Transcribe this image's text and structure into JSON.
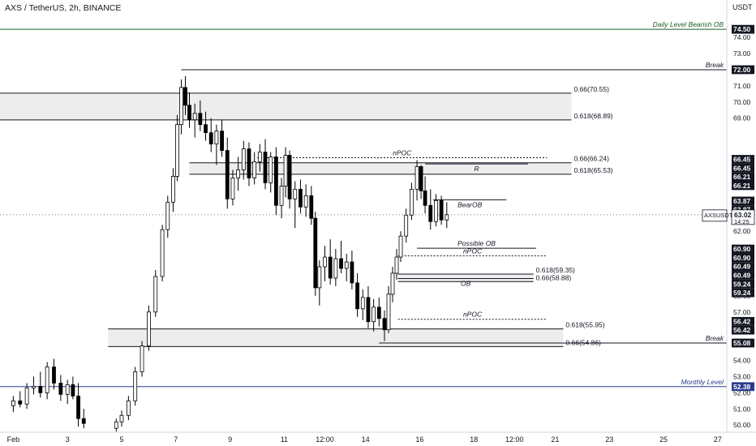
{
  "header": {
    "title": "AXS / TetherUS, 2h, BINANCE",
    "currency": "USDT"
  },
  "colors": {
    "up": "#ffffff",
    "down": "#000000",
    "line": "#131722",
    "zone": "#e9e9e9",
    "axis_text": "#131722",
    "monthly": "#2b3a8f",
    "daily": "#1b5e20"
  },
  "chart_data": {
    "type": "candlestick",
    "title": "AXS / TetherUS, 2h, BINANCE",
    "y_unit": "USDT",
    "ylim": [
      49.6,
      76.0
    ],
    "x_range": [
      "Jan 31 06:00",
      "Feb 28 00:00"
    ],
    "y_ticks": [
      "50.00",
      "51.00",
      "52.00",
      "53.00",
      "54.00",
      "57.00",
      "58.00",
      "62.00",
      "65.00",
      "69.00",
      "70.00",
      "71.00",
      "73.00",
      "74.00"
    ],
    "x_ticks": [
      {
        "label": "Feb",
        "day": 1
      },
      {
        "label": "3",
        "day": 3
      },
      {
        "label": "5",
        "day": 5
      },
      {
        "label": "7",
        "day": 7
      },
      {
        "label": "9",
        "day": 9
      },
      {
        "label": "11",
        "day": 11
      },
      {
        "label": "12:00",
        "day": 12.5
      },
      {
        "label": "14",
        "day": 14
      },
      {
        "label": "16",
        "day": 16
      },
      {
        "label": "18",
        "day": 18
      },
      {
        "label": "12:00",
        "day": 19.5
      },
      {
        "label": "21",
        "day": 21
      },
      {
        "label": "23",
        "day": 23
      },
      {
        "label": "25",
        "day": 25
      },
      {
        "label": "27",
        "day": 27
      }
    ],
    "price_badges": [
      {
        "label": "74.50",
        "price": 74.5
      },
      {
        "label": "72.00",
        "price": 72.0
      },
      {
        "label": "66.45",
        "price": 66.45
      },
      {
        "label": "66.45",
        "price": 66.45
      },
      {
        "label": "66.21",
        "price": 66.21
      },
      {
        "label": "66.21",
        "price": 66.21
      },
      {
        "label": "63.87",
        "price": 63.87
      },
      {
        "label": "63.87",
        "price": 63.87
      },
      {
        "label": "60.90",
        "price": 60.9
      },
      {
        "label": "60.90",
        "price": 60.9
      },
      {
        "label": "60.49",
        "price": 60.49
      },
      {
        "label": "60.49",
        "price": 60.49
      },
      {
        "label": "59.24",
        "price": 59.24
      },
      {
        "label": "59.24",
        "price": 59.24
      },
      {
        "label": "56.42",
        "price": 56.42
      },
      {
        "label": "56.42",
        "price": 56.42
      },
      {
        "label": "55.08",
        "price": 55.08
      },
      {
        "label": "52.38",
        "price": 52.38
      }
    ],
    "current_price": {
      "symbol": "AXSUSDT",
      "price": "63.02",
      "timer": "14:25",
      "value": 63.02
    },
    "levels": [
      {
        "label": "Daily Level Bearish OB",
        "price": 74.5,
        "start_day": 0,
        "style": "solid",
        "color": "daily"
      },
      {
        "label": "Break",
        "price": 72.0,
        "start_day": 7.2,
        "style": "solid",
        "color": "line"
      },
      {
        "label": "0.66(70.55)",
        "price": 70.55,
        "start_day": 0,
        "end_day": 21.6,
        "style": "solid",
        "color": "line"
      },
      {
        "label": "0.618(68.89)",
        "price": 68.89,
        "start_day": 0,
        "end_day": 21.6,
        "style": "solid",
        "color": "line"
      },
      {
        "label": "nPOC",
        "price": 66.55,
        "start_day": 10.0,
        "end_day": 20.7,
        "style": "dotted",
        "color": "line"
      },
      {
        "label": "0.66(66.24)",
        "price": 66.24,
        "start_day": 7.5,
        "end_day": 21.6,
        "style": "solid",
        "color": "line"
      },
      {
        "label": "R",
        "price": 66.17,
        "start_day": 16.2,
        "end_day": 20.0,
        "style": "solid",
        "color": "line"
      },
      {
        "label": "0.618(65.53)",
        "price": 65.53,
        "start_day": 7.5,
        "end_day": 21.6,
        "style": "solid",
        "color": "line"
      },
      {
        "label": "BearOB",
        "price": 63.95,
        "start_day": 16.5,
        "end_day": 19.2,
        "style": "solid",
        "color": "line"
      },
      {
        "label": "Possible OB",
        "price": 60.95,
        "start_day": 15.9,
        "end_day": 20.3,
        "style": "solid",
        "color": "line"
      },
      {
        "label": "nPOC",
        "price": 60.48,
        "start_day": 15.2,
        "end_day": 20.7,
        "style": "dotted",
        "color": "line"
      },
      {
        "label": "0.618(59.35)",
        "price": 59.35,
        "start_day": 15.2,
        "end_day": 20.2,
        "style": "solid",
        "color": "line"
      },
      {
        "label": "OB",
        "price": 59.07,
        "start_day": 15.2,
        "end_day": 20.2,
        "style": "solid",
        "color": "line"
      },
      {
        "label": "0.66(58.88)",
        "price": 58.88,
        "start_day": 15.2,
        "end_day": 20.2,
        "style": "solid",
        "color": "line"
      },
      {
        "label": "nPOC",
        "price": 56.55,
        "start_day": 15.2,
        "end_day": 20.7,
        "style": "dotted",
        "color": "line"
      },
      {
        "label": "0.618(55.95)",
        "price": 55.95,
        "start_day": 4.5,
        "end_day": 21.3,
        "style": "solid",
        "color": "line"
      },
      {
        "label": "Break",
        "price": 55.08,
        "start_day": 14.5,
        "style": "solid",
        "color": "line"
      },
      {
        "label": "0.66(54.86)",
        "price": 54.86,
        "start_day": 4.5,
        "end_day": 21.3,
        "style": "solid",
        "color": "line"
      },
      {
        "label": "Monthly Level",
        "price": 52.38,
        "start_day": 0,
        "style": "solid",
        "color": "monthly"
      }
    ],
    "zones": [
      {
        "price_top": 70.55,
        "price_bottom": 68.89,
        "start_day": 0,
        "end_day": 21.6
      },
      {
        "price_top": 66.24,
        "price_bottom": 65.53,
        "start_day": 7.5,
        "end_day": 21.6
      },
      {
        "price_top": 59.35,
        "price_bottom": 58.88,
        "start_day": 15.2,
        "end_day": 20.2
      },
      {
        "price_top": 55.95,
        "price_bottom": 54.86,
        "start_day": 4.5,
        "end_day": 21.3
      }
    ],
    "candles": [
      [
        1.0,
        51.2,
        51.8,
        50.8,
        51.5
      ],
      [
        1.25,
        51.5,
        52.1,
        51.1,
        51.3
      ],
      [
        1.5,
        51.3,
        52.6,
        51.0,
        52.3
      ],
      [
        1.75,
        52.3,
        53.0,
        51.9,
        52.4
      ],
      [
        2.0,
        52.4,
        53.3,
        51.7,
        52.0
      ],
      [
        2.25,
        52.0,
        53.9,
        51.6,
        53.6
      ],
      [
        2.5,
        53.6,
        54.1,
        52.2,
        52.6
      ],
      [
        2.75,
        52.6,
        53.1,
        51.5,
        51.9
      ],
      [
        3.0,
        51.9,
        52.8,
        51.3,
        52.5
      ],
      [
        3.2,
        52.5,
        53.0,
        51.6,
        51.8
      ],
      [
        3.4,
        51.8,
        52.6,
        49.9,
        50.4
      ],
      [
        3.6,
        50.4,
        51.0,
        49.8,
        50.1
      ],
      [
        4.8,
        49.8,
        50.4,
        49.6,
        50.2
      ],
      [
        5.0,
        50.2,
        50.9,
        49.9,
        50.6
      ],
      [
        5.25,
        50.6,
        51.8,
        50.3,
        51.5
      ],
      [
        5.5,
        51.5,
        53.6,
        51.2,
        53.3
      ],
      [
        5.75,
        53.3,
        55.2,
        53.0,
        54.9
      ],
      [
        6.0,
        54.9,
        57.4,
        54.6,
        57.0
      ],
      [
        6.25,
        57.0,
        59.6,
        56.7,
        59.2
      ],
      [
        6.5,
        59.2,
        62.4,
        58.9,
        62.1
      ],
      [
        6.7,
        62.1,
        64.2,
        61.6,
        63.8
      ],
      [
        6.9,
        63.8,
        65.9,
        63.2,
        65.4
      ],
      [
        7.05,
        65.4,
        69.2,
        65.1,
        68.6
      ],
      [
        7.2,
        68.6,
        71.4,
        68.0,
        70.9
      ],
      [
        7.35,
        70.9,
        71.6,
        69.2,
        69.8
      ],
      [
        7.5,
        69.8,
        70.6,
        68.4,
        68.9
      ],
      [
        7.7,
        68.9,
        69.9,
        67.8,
        69.3
      ],
      [
        7.9,
        69.3,
        70.1,
        68.2,
        68.6
      ],
      [
        8.1,
        68.6,
        69.4,
        67.6,
        68.1
      ],
      [
        8.3,
        68.1,
        69.0,
        66.9,
        67.4
      ],
      [
        8.5,
        67.4,
        68.6,
        66.1,
        68.2
      ],
      [
        8.7,
        68.2,
        68.9,
        66.6,
        67.0
      ],
      [
        8.9,
        67.0,
        67.8,
        63.4,
        64.0
      ],
      [
        9.1,
        64.0,
        65.8,
        63.6,
        65.3
      ],
      [
        9.3,
        65.3,
        66.6,
        64.5,
        65.8
      ],
      [
        9.5,
        65.8,
        67.6,
        65.2,
        67.1
      ],
      [
        9.7,
        67.1,
        67.5,
        64.8,
        65.3
      ],
      [
        9.9,
        65.3,
        66.9,
        64.9,
        66.3
      ],
      [
        10.1,
        66.3,
        67.4,
        65.7,
        66.9
      ],
      [
        10.3,
        66.9,
        67.7,
        64.6,
        65.0
      ],
      [
        10.5,
        65.0,
        66.9,
        64.4,
        66.6
      ],
      [
        10.7,
        66.6,
        67.2,
        63.0,
        63.6
      ],
      [
        10.9,
        63.6,
        65.3,
        62.8,
        64.8
      ],
      [
        11.05,
        64.8,
        67.2,
        64.1,
        66.7
      ],
      [
        11.2,
        66.7,
        67.0,
        63.4,
        64.0
      ],
      [
        11.4,
        64.0,
        65.1,
        62.2,
        64.6
      ],
      [
        11.6,
        64.6,
        65.2,
        63.1,
        63.5
      ],
      [
        11.8,
        63.5,
        64.9,
        62.9,
        64.2
      ],
      [
        12.0,
        64.2,
        64.8,
        62.4,
        62.8
      ],
      [
        12.15,
        62.8,
        63.2,
        58.0,
        58.5
      ],
      [
        12.3,
        58.5,
        60.2,
        57.4,
        59.8
      ],
      [
        12.5,
        59.8,
        61.1,
        58.9,
        60.4
      ],
      [
        12.7,
        60.4,
        61.5,
        58.7,
        59.1
      ],
      [
        12.9,
        59.1,
        60.9,
        58.6,
        60.3
      ],
      [
        13.1,
        60.3,
        61.4,
        59.4,
        59.7
      ],
      [
        13.3,
        59.7,
        60.6,
        58.9,
        60.1
      ],
      [
        13.5,
        60.1,
        60.8,
        58.4,
        58.8
      ],
      [
        13.7,
        58.8,
        59.4,
        56.7,
        57.2
      ],
      [
        13.9,
        57.2,
        58.4,
        56.5,
        57.9
      ],
      [
        14.1,
        57.9,
        58.6,
        56.0,
        56.4
      ],
      [
        14.3,
        56.4,
        57.8,
        55.8,
        57.3
      ],
      [
        14.5,
        57.3,
        57.9,
        56.1,
        56.6
      ],
      [
        14.7,
        56.6,
        57.1,
        55.2,
        55.9
      ],
      [
        14.85,
        55.9,
        58.6,
        55.7,
        58.1
      ],
      [
        15.0,
        58.1,
        59.8,
        57.6,
        59.4
      ],
      [
        15.15,
        59.4,
        60.9,
        59.0,
        60.4
      ],
      [
        15.3,
        60.4,
        62.0,
        60.1,
        61.7
      ],
      [
        15.5,
        61.7,
        63.4,
        61.3,
        63.0
      ],
      [
        15.7,
        63.0,
        65.0,
        62.7,
        64.6
      ],
      [
        15.9,
        64.6,
        66.4,
        63.9,
        66.0
      ],
      [
        16.05,
        66.0,
        66.1,
        64.0,
        64.5
      ],
      [
        16.2,
        64.5,
        65.4,
        63.1,
        63.6
      ],
      [
        16.4,
        63.6,
        64.6,
        62.1,
        62.6
      ],
      [
        16.6,
        62.6,
        64.3,
        62.3,
        63.9
      ],
      [
        16.8,
        63.9,
        64.2,
        62.4,
        62.7
      ],
      [
        17.0,
        62.7,
        63.8,
        62.2,
        63.02
      ]
    ]
  }
}
